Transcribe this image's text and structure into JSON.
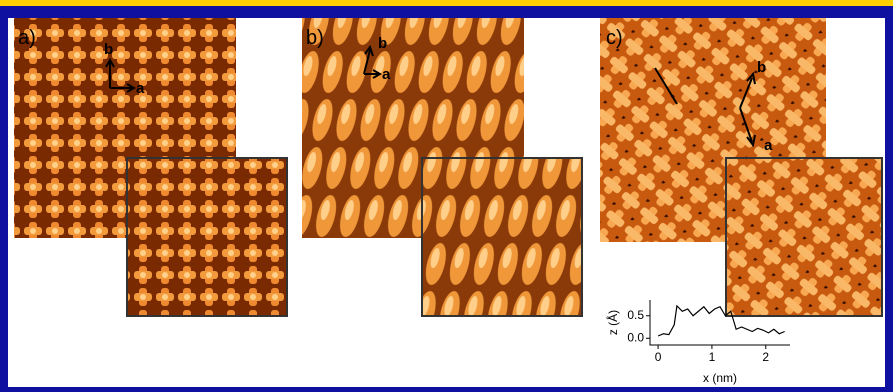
{
  "panels": [
    {
      "label": "a)",
      "axes": [
        "b",
        "a"
      ]
    },
    {
      "label": "b)",
      "axes": [
        "b",
        "a"
      ]
    },
    {
      "label": "c)",
      "axes": [
        "b",
        "a"
      ]
    }
  ],
  "profile": {
    "type": "line",
    "x": [
      0,
      0.1,
      0.2,
      0.3,
      0.35,
      0.45,
      0.55,
      0.65,
      0.75,
      0.85,
      0.95,
      1.05,
      1.15,
      1.25,
      1.35,
      1.45,
      1.55,
      1.65,
      1.75,
      1.85,
      1.95,
      2.05,
      2.15,
      2.25,
      2.35
    ],
    "values": [
      0.05,
      0.1,
      0.08,
      0.3,
      0.72,
      0.6,
      0.65,
      0.5,
      0.6,
      0.7,
      0.55,
      0.65,
      0.7,
      0.5,
      0.6,
      0.2,
      0.25,
      0.2,
      0.15,
      0.22,
      0.18,
      0.12,
      0.2,
      0.1,
      0.15
    ],
    "xlim": [
      -0.15,
      2.45
    ],
    "ylim": [
      -0.15,
      0.85
    ],
    "xticks": [
      0,
      1,
      2
    ],
    "yticks": [
      {
        "value": 0,
        "label": "0.0"
      },
      {
        "value": 0.5,
        "label": "0.5"
      }
    ],
    "xlabel": "x (nm)",
    "ylabel": "z (Å)"
  }
}
